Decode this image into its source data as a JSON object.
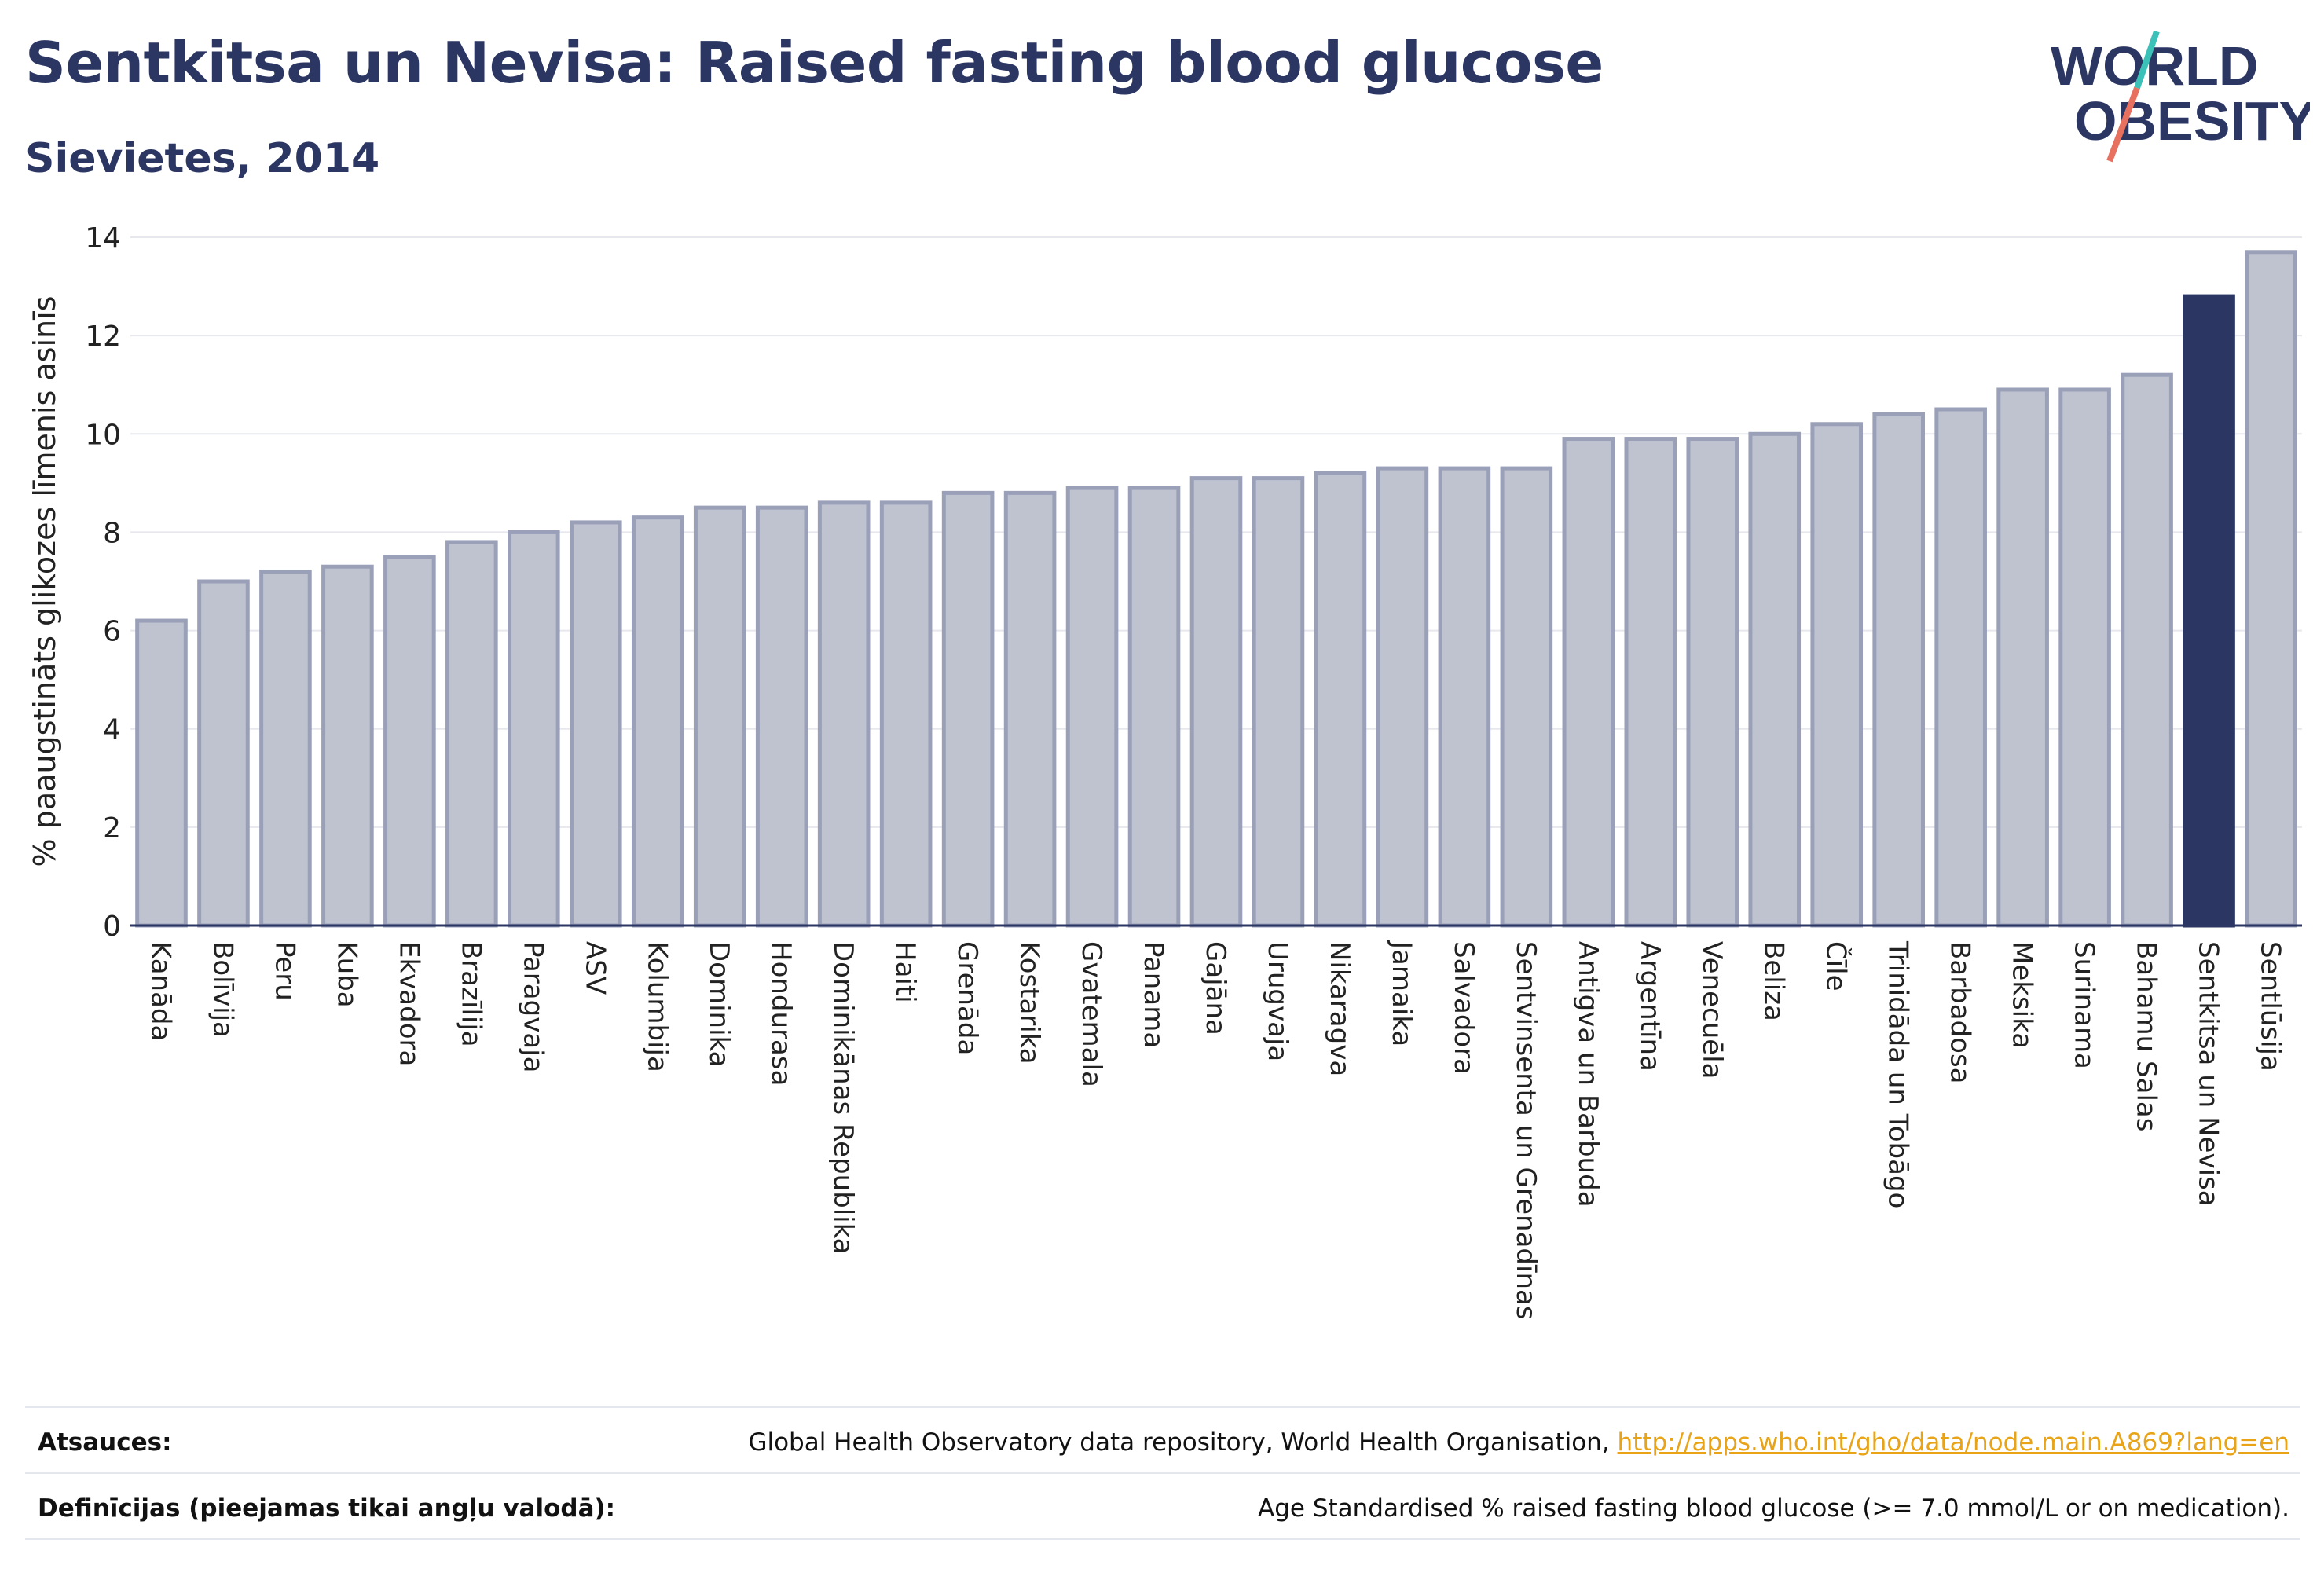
{
  "header": {
    "title": "Sentkitsa un Nevisa: Raised fasting blood glucose",
    "subtitle": "Sievietes, 2014"
  },
  "logo": {
    "line1": "WORLD",
    "line2": "OBESITY",
    "slash_colors": [
      "#3cc1b8",
      "#e8705f"
    ]
  },
  "chart_data": {
    "type": "bar",
    "categories": [
      "Kanāda",
      "Bolīvija",
      "Peru",
      "Kuba",
      "Ekvadora",
      "Brazīlija",
      "Paragvaja",
      "ASV",
      "Kolumbija",
      "Dominika",
      "Hondurasa",
      "Dominikānas Republika",
      "Haiti",
      "Grenāda",
      "Kostarika",
      "Gvatemala",
      "Panama",
      "Gajāna",
      "Urugvaja",
      "Nikaragva",
      "Jamaika",
      "Salvadora",
      "Sentvinsenta un Grenadīnas",
      "Antigva un Barbuda",
      "Argentīna",
      "Venecuēla",
      "Beliza",
      "Čīle",
      "Trinidāda un Tobāgo",
      "Barbadosa",
      "Meksika",
      "Surinama",
      "Bahamu Salas",
      "Sentkitsa un Nevisa",
      "Sentlūsija"
    ],
    "values": [
      6.2,
      7.0,
      7.2,
      7.3,
      7.5,
      7.8,
      8.0,
      8.2,
      8.3,
      8.5,
      8.5,
      8.6,
      8.6,
      8.8,
      8.8,
      8.9,
      8.9,
      9.1,
      9.1,
      9.2,
      9.3,
      9.3,
      9.3,
      9.9,
      9.9,
      9.9,
      10.0,
      10.2,
      10.4,
      10.5,
      10.9,
      10.9,
      11.2,
      12.8,
      13.7
    ],
    "highlight": "Sentkitsa un Nevisa",
    "ylabel": "% paaugstināts glikozes līmenis asinīs",
    "xlabel": "",
    "ylim": [
      0,
      14
    ],
    "yticks": [
      0,
      2,
      4,
      6,
      8,
      10,
      12,
      14
    ],
    "grid": true,
    "colors": {
      "bar": "#bfc3d0",
      "bar_edge": "#9aa0b8",
      "highlight": "#2b3663"
    }
  },
  "footer": {
    "sources_label": "Atsauces:",
    "sources_text": "Global Health Observatory data repository, World Health Organisation, ",
    "sources_link": "http://apps.who.int/gho/data/node.main.A869?lang=en",
    "definitions_label": "Definīcijas (pieejamas tikai angļu valodā):",
    "definitions_text": "Age Standardised % raised fasting blood glucose (>= 7.0 mmol/L or on medication)."
  }
}
